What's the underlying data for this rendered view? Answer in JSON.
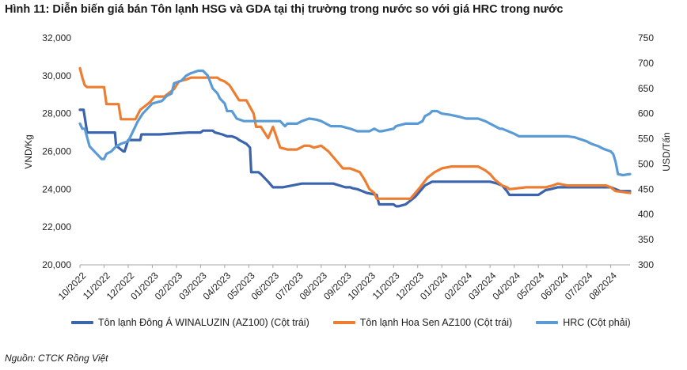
{
  "title": "Hình 11: Diễn biến giá bán Tôn lạnh HSG và GDA tại thị trường trong nước so với giá HRC trong nước",
  "source": "Nguồn: CTCK Rồng Việt",
  "chart_data": {
    "type": "line",
    "ylabel_left": "VND/Kg",
    "ylabel_right": "USD/Tấn",
    "ylim_left": [
      20000,
      32000
    ],
    "ylim_right": [
      300,
      750
    ],
    "yticks_left": [
      "20,000",
      "22,000",
      "24,000",
      "26,000",
      "28,000",
      "30,000",
      "32,000"
    ],
    "yticks_right": [
      "300",
      "350",
      "400",
      "450",
      "500",
      "550",
      "600",
      "650",
      "700",
      "750"
    ],
    "xticks": [
      "10/2022",
      "11/2022",
      "12/2022",
      "01/2023",
      "02/2023",
      "03/2023",
      "04/2023",
      "05/2023",
      "06/2023",
      "07/2023",
      "08/2023",
      "09/2023",
      "10/2023",
      "11/2023",
      "12/2023",
      "01/2024",
      "02/2024",
      "03/2024",
      "04/2024",
      "05/2024",
      "06/2024",
      "07/2024",
      "08/2024"
    ],
    "x_range_months": [
      0,
      22.8
    ],
    "grid": false,
    "legend_position": "bottom",
    "series": [
      {
        "name": "Tôn lạnh Đông Á WINALUZIN (AZ100) (Cột trái)",
        "axis": "left",
        "color": "#3b64ad",
        "x": [
          0,
          0.15,
          0.2,
          0.3,
          1.45,
          1.5,
          1.8,
          1.85,
          2.0,
          2.05,
          2.5,
          2.55,
          2.8,
          2.85,
          3.3,
          4.5,
          4.55,
          5.0,
          5.1,
          5.5,
          5.6,
          5.9,
          6.1,
          6.3,
          6.5,
          6.6,
          6.9,
          7.05,
          7.1,
          7.4,
          7.5,
          7.8,
          8.0,
          8.3,
          8.4,
          9.2,
          9.4,
          10.5,
          11.0,
          11.2,
          11.3,
          11.5,
          11.9,
          12.3,
          12.4,
          13.0,
          13.1,
          13.2,
          13.5,
          13.7,
          13.9,
          14.1,
          14.3,
          14.6,
          14.8,
          15.0,
          15.5,
          16.5,
          17.0,
          17.3,
          17.5,
          17.7,
          17.8,
          18.2,
          19.0,
          19.3,
          19.5,
          19.8,
          20.3,
          21.5,
          22.0,
          22.2,
          22.4,
          22.8
        ],
        "values": [
          28200,
          28200,
          27800,
          27000,
          27000,
          26300,
          26000,
          26000,
          26600,
          26600,
          26600,
          26900,
          26900,
          26900,
          26900,
          27000,
          27000,
          27000,
          27100,
          27100,
          27000,
          26900,
          26800,
          26800,
          26700,
          26600,
          26400,
          26200,
          24900,
          24900,
          24800,
          24400,
          24100,
          24100,
          24100,
          24300,
          24300,
          24300,
          24100,
          24100,
          24050,
          24000,
          23800,
          23700,
          23200,
          23200,
          23100,
          23100,
          23200,
          23400,
          23600,
          23900,
          24200,
          24400,
          24400,
          24400,
          24400,
          24400,
          24400,
          24300,
          24200,
          23900,
          23700,
          23700,
          23700,
          23950,
          24000,
          24100,
          24100,
          24100,
          24100,
          24000,
          23900,
          23900
        ]
      },
      {
        "name": "Tôn lạnh Hoa Sen AZ100 (Cột trái)",
        "axis": "left",
        "color": "#ed7d31",
        "x": [
          0,
          0.1,
          0.2,
          0.3,
          0.5,
          1.0,
          1.1,
          1.6,
          1.7,
          2.2,
          2.3,
          2.5,
          2.7,
          2.9,
          3.1,
          3.5,
          3.7,
          3.9,
          4.1,
          4.4,
          4.6,
          4.9,
          5.3,
          5.7,
          5.8,
          6.0,
          6.2,
          6.4,
          6.6,
          6.9,
          7.2,
          7.3,
          7.5,
          7.8,
          8.0,
          8.3,
          8.6,
          8.7,
          9.0,
          9.3,
          9.5,
          9.7,
          10.0,
          10.2,
          10.3,
          10.9,
          11.2,
          11.6,
          11.8,
          12.0,
          12.2,
          12.3,
          12.5,
          13.5,
          13.7,
          13.9,
          14.1,
          14.4,
          14.7,
          15.0,
          15.4,
          16.0,
          16.3,
          16.5,
          16.8,
          17.0,
          17.2,
          17.5,
          17.7,
          17.8,
          18.5,
          19.0,
          19.3,
          19.6,
          19.8,
          20.2,
          21.0,
          21.5,
          21.8,
          22.0,
          22.2,
          22.8
        ],
        "values": [
          30400,
          29900,
          29500,
          29400,
          29400,
          29400,
          28500,
          28500,
          27700,
          27700,
          27700,
          28200,
          28400,
          28600,
          28900,
          28900,
          29100,
          29300,
          29700,
          29800,
          29900,
          29900,
          29900,
          29900,
          29800,
          29700,
          29500,
          29100,
          28700,
          28700,
          28000,
          27300,
          27300,
          26700,
          27300,
          26200,
          26100,
          26100,
          26100,
          26300,
          26300,
          26200,
          26300,
          26100,
          26000,
          25100,
          25100,
          24900,
          24500,
          24000,
          23800,
          23500,
          23500,
          23500,
          23500,
          23800,
          24100,
          24600,
          24900,
          25100,
          25200,
          25200,
          25200,
          25200,
          25000,
          24800,
          24500,
          24200,
          24100,
          24000,
          24100,
          24100,
          24100,
          24200,
          24300,
          24200,
          24200,
          24200,
          24200,
          24100,
          23900,
          23800
        ]
      },
      {
        "name": "HRC (Cột phải)",
        "axis": "right",
        "color": "#5b9bd5",
        "x": [
          0,
          0.1,
          0.2,
          0.4,
          0.5,
          0.7,
          0.9,
          1.0,
          1.1,
          1.3,
          1.5,
          1.7,
          2.0,
          2.2,
          2.4,
          2.6,
          2.8,
          3.0,
          3.4,
          3.6,
          3.8,
          3.9,
          4.2,
          4.4,
          4.6,
          4.9,
          5.1,
          5.3,
          5.5,
          5.7,
          5.8,
          6.0,
          6.1,
          6.3,
          6.5,
          6.8,
          7.1,
          7.4,
          7.6,
          8.3,
          8.5,
          8.6,
          9.0,
          9.2,
          9.5,
          9.8,
          10.0,
          10.2,
          10.4,
          10.6,
          10.8,
          11.2,
          11.5,
          12.0,
          12.2,
          12.4,
          12.5,
          13.0,
          13.1,
          13.5,
          13.8,
          14.0,
          14.2,
          14.3,
          14.5,
          14.6,
          14.8,
          15.0,
          15.3,
          15.5,
          15.7,
          16.0,
          16.2,
          16.5,
          16.8,
          17.0,
          17.2,
          17.4,
          17.5,
          18.0,
          18.2,
          18.5,
          19.0,
          19.5,
          20.0,
          20.2,
          20.5,
          21.0,
          21.2,
          21.5,
          21.7,
          22.0,
          22.1,
          22.2,
          22.3,
          22.5,
          22.8
        ],
        "values": [
          580,
          570,
          570,
          535,
          530,
          520,
          510,
          510,
          520,
          525,
          535,
          540,
          545,
          565,
          585,
          600,
          610,
          620,
          625,
          635,
          640,
          660,
          665,
          675,
          680,
          685,
          685,
          675,
          650,
          640,
          630,
          620,
          605,
          605,
          590,
          585,
          585,
          585,
          585,
          585,
          575,
          580,
          580,
          585,
          590,
          588,
          585,
          580,
          575,
          575,
          575,
          570,
          565,
          565,
          570,
          565,
          565,
          570,
          575,
          580,
          580,
          580,
          585,
          595,
          600,
          605,
          605,
          600,
          598,
          596,
          594,
          590,
          590,
          590,
          585,
          580,
          575,
          570,
          570,
          560,
          555,
          555,
          555,
          555,
          555,
          555,
          553,
          545,
          540,
          535,
          530,
          525,
          520,
          505,
          480,
          478,
          480
        ]
      }
    ]
  }
}
